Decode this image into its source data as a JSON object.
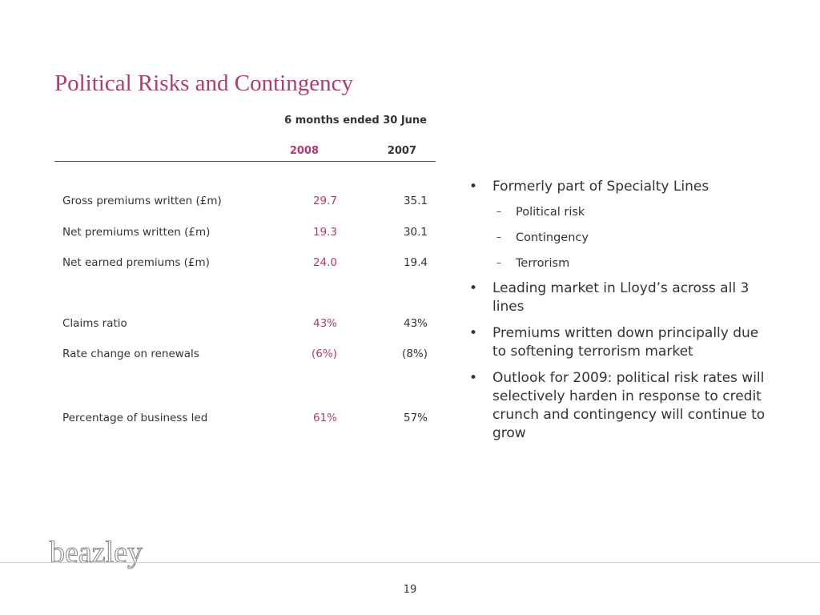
{
  "slide": {
    "title": "Political Risks and Contingency",
    "page_number": "19"
  },
  "table": {
    "period_header": "6 months ended 30 June",
    "year_2008": "2008",
    "year_2007": "2007",
    "rows": [
      {
        "label": "Gross premiums written (£m)",
        "v2008": "29.7",
        "v2007": "35.1"
      },
      {
        "label": "Net premiums written (£m)",
        "v2008": "19.3",
        "v2007": "30.1"
      },
      {
        "label": "Net earned premiums (£m)",
        "v2008": "24.0",
        "v2007": "19.4"
      },
      {
        "label": "Claims ratio",
        "v2008": "43%",
        "v2007": "43%"
      },
      {
        "label": "Rate change on renewals",
        "v2008": "(6%)",
        "v2007": "(8%)"
      },
      {
        "label": "Percentage of business led",
        "v2008": "61%",
        "v2007": "57%"
      }
    ]
  },
  "bullets": {
    "items": [
      {
        "text": "Formerly part of Specialty Lines",
        "sub_items": [
          "Political risk",
          "Contingency",
          "Terrorism"
        ]
      },
      {
        "text": "Leading market in Lloyd’s across all 3 lines"
      },
      {
        "text": "Premiums written down principally due to softening terrorism market"
      },
      {
        "text": "Outlook for 2009: political risk rates will selectively harden in response to credit crunch and contingency will continue to grow"
      }
    ],
    "bullet_symbol": "•",
    "dash_symbol": "–"
  },
  "logo": {
    "text": "beazley",
    "icon": "beazley-logo"
  },
  "colors": {
    "accent": "#b23a70",
    "text": "#333333",
    "logo": "#8a8a8a"
  }
}
